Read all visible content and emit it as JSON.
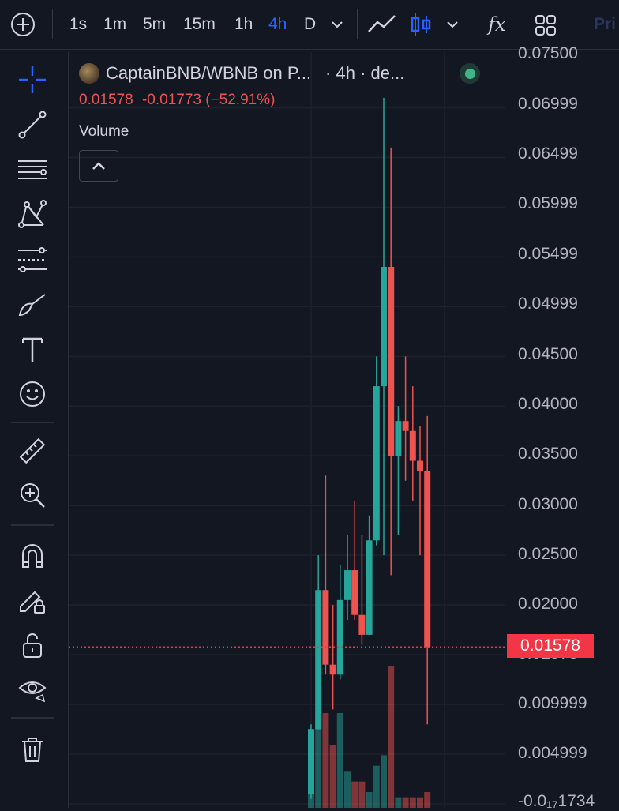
{
  "toolbar": {
    "add_label": "+",
    "intervals": [
      "1s",
      "1m",
      "5m",
      "15m",
      "1h",
      "4h",
      "D"
    ],
    "active_interval": "4h",
    "indicators_label": "fx",
    "cut_label": "Pri"
  },
  "legend": {
    "symbol": "CaptainBNB/WBNB on P...",
    "timeframe": "· 4h · de...",
    "price": "0.01578",
    "change": "-0.01773 (−52.91%)",
    "volume_label": "Volume"
  },
  "price_scale": {
    "labels": [
      "0.07500",
      "0.06999",
      "0.06499",
      "0.05999",
      "0.05499",
      "0.04999",
      "0.04500",
      "0.04000",
      "0.03500",
      "0.03000",
      "0.02500",
      "0.02000",
      "0.01578",
      "0.009999",
      "0.004999",
      "-0.0₁₇1734"
    ],
    "last_price": "0.01578",
    "colors": {
      "up": "#26a69a",
      "down": "#ef5350",
      "last": "#f23645",
      "accent": "#2962ff"
    }
  },
  "left_tools": [
    "crosshair-icon",
    "trend-line-icon",
    "horizontal-lines-icon",
    "pattern-icon",
    "fib-icon",
    "brush-icon",
    "text-icon",
    "emoji-icon",
    "ruler-icon",
    "zoom-in-icon",
    "magnet-icon",
    "lock-drawing-icon",
    "unlock-icon",
    "eye-icon",
    "trash-icon"
  ],
  "chart_data": {
    "type": "candlestick",
    "candles": [
      {
        "o": 0.001,
        "h": 0.008,
        "l": 0.0005,
        "c": 0.0075,
        "v": 0.0075
      },
      {
        "o": 0.0075,
        "h": 0.025,
        "l": 0.0075,
        "c": 0.0215,
        "v": 0.009
      },
      {
        "o": 0.0215,
        "h": 0.033,
        "l": 0.013,
        "c": 0.014,
        "v": 0.009
      },
      {
        "o": 0.014,
        "h": 0.02,
        "l": 0.0095,
        "c": 0.013,
        "v": 0.006
      },
      {
        "o": 0.013,
        "h": 0.024,
        "l": 0.0125,
        "c": 0.0205,
        "v": 0.009
      },
      {
        "o": 0.0205,
        "h": 0.027,
        "l": 0.0185,
        "c": 0.0235,
        "v": 0.0035
      },
      {
        "o": 0.0235,
        "h": 0.0305,
        "l": 0.0185,
        "c": 0.019,
        "v": 0.0025
      },
      {
        "o": 0.019,
        "h": 0.027,
        "l": 0.016,
        "c": 0.017,
        "v": 0.0025
      },
      {
        "o": 0.017,
        "h": 0.029,
        "l": 0.017,
        "c": 0.0265,
        "v": 0.0015
      },
      {
        "o": 0.0265,
        "h": 0.045,
        "l": 0.026,
        "c": 0.042,
        "v": 0.004
      },
      {
        "o": 0.042,
        "h": 0.071,
        "l": 0.025,
        "c": 0.054,
        "v": 0.005
      },
      {
        "o": 0.054,
        "h": 0.066,
        "l": 0.023,
        "c": 0.035,
        "v": 0.0135
      },
      {
        "o": 0.035,
        "h": 0.04,
        "l": 0.027,
        "c": 0.0385,
        "v": 0.001
      },
      {
        "o": 0.0385,
        "h": 0.045,
        "l": 0.0325,
        "c": 0.0375,
        "v": 0.001
      },
      {
        "o": 0.0375,
        "h": 0.042,
        "l": 0.0305,
        "c": 0.0345,
        "v": 0.001
      },
      {
        "o": 0.0345,
        "h": 0.038,
        "l": 0.025,
        "c": 0.0335,
        "v": 0.001
      },
      {
        "o": 0.0335,
        "h": 0.039,
        "l": 0.008,
        "c": 0.0158,
        "v": 0.0015
      }
    ],
    "ylim": [
      -0.0004,
      0.0756
    ],
    "last_price": 0.01578,
    "grid": true
  }
}
